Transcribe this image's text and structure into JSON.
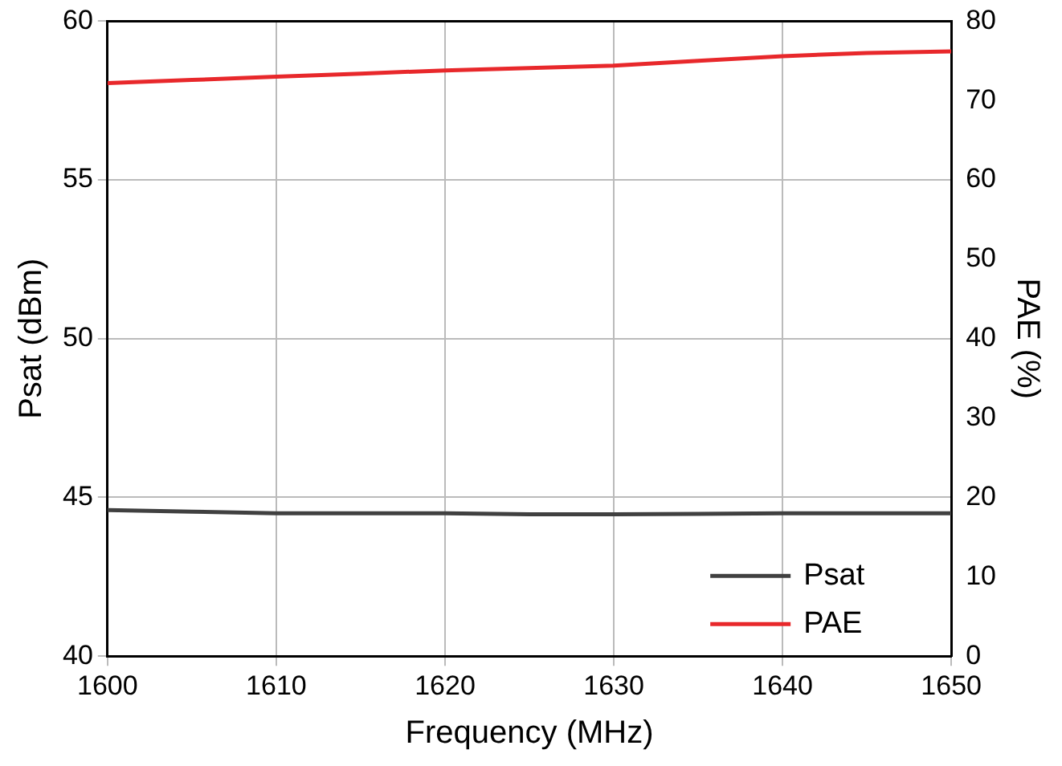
{
  "chart_data": {
    "type": "line",
    "xlabel": "Frequency (MHz)",
    "ylabel": "Psat (dBm)",
    "y2label": "PAE (%)",
    "x": [
      1600,
      1605,
      1610,
      1615,
      1620,
      1625,
      1630,
      1635,
      1640,
      1645,
      1650
    ],
    "series": [
      {
        "name": "Psat",
        "color": "#404040",
        "values": [
          44.6,
          44.55,
          44.5,
          44.5,
          44.5,
          44.47,
          44.47,
          44.48,
          44.5,
          44.5,
          44.5
        ]
      },
      {
        "name": "PAE",
        "color": "#e8282b",
        "axis": "y2",
        "values": [
          72.2,
          72.6,
          73.0,
          73.4,
          73.8,
          74.1,
          74.4,
          75.0,
          75.6,
          76.0,
          76.2
        ]
      }
    ],
    "xlim": [
      1600,
      1650
    ],
    "xticks": [
      1600,
      1610,
      1620,
      1630,
      1640,
      1650
    ],
    "ylim": [
      40,
      60
    ],
    "yticks": [
      40,
      45,
      50,
      55,
      60
    ],
    "y2lim": [
      0,
      80
    ],
    "y2ticks": [
      0,
      10,
      20,
      30,
      40,
      50,
      60,
      70,
      80
    ],
    "grid": true,
    "legend": "bottom right",
    "marker": "none",
    "line_style": "solid"
  }
}
